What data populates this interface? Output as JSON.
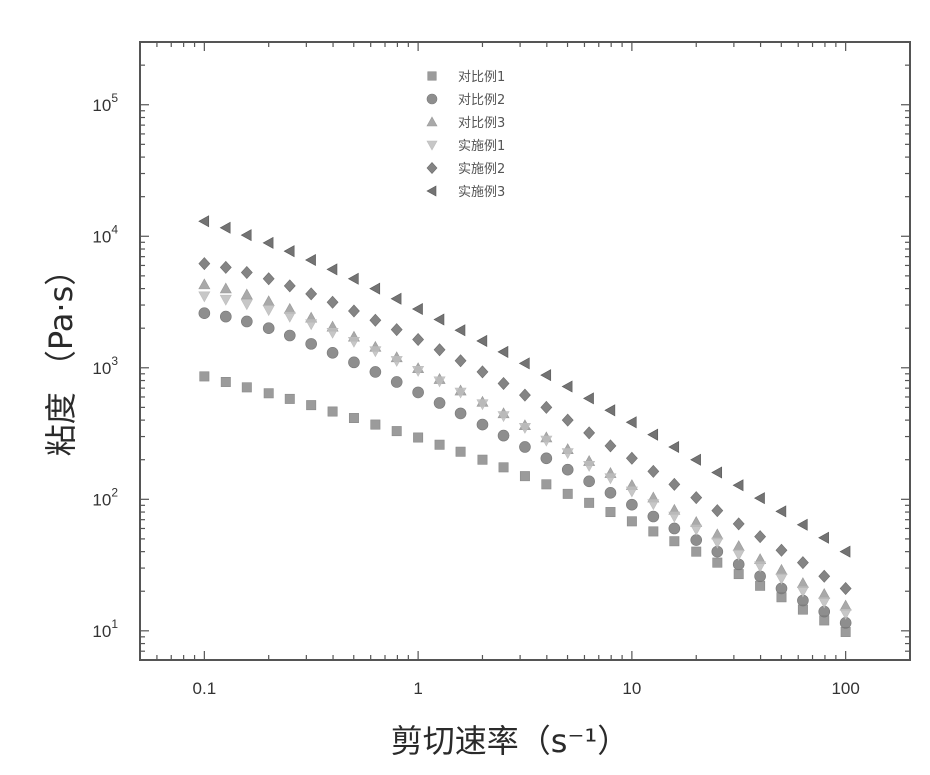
{
  "chart_data": {
    "type": "scatter",
    "xlabel": "剪切速率（s⁻¹）",
    "ylabel": "粘度 （Pa·s）",
    "x_scale": "log",
    "y_scale": "log",
    "xlim": [
      0.05,
      200
    ],
    "ylim": [
      6,
      300000
    ],
    "x_ticks": [
      {
        "value": 0.1,
        "label": "0.1"
      },
      {
        "value": 1,
        "label": "1"
      },
      {
        "value": 10,
        "label": "10"
      },
      {
        "value": 100,
        "label": "100"
      }
    ],
    "y_ticks": [
      {
        "value": 10,
        "base": "10",
        "exp": "1"
      },
      {
        "value": 100,
        "base": "10",
        "exp": "2"
      },
      {
        "value": 1000,
        "base": "10",
        "exp": "3"
      },
      {
        "value": 10000,
        "base": "10",
        "exp": "4"
      },
      {
        "value": 100000,
        "base": "10",
        "exp": "5"
      }
    ],
    "grid": false,
    "legend_position": "top-center",
    "x_points": [
      0.1,
      0.126,
      0.158,
      0.2,
      0.251,
      0.316,
      0.398,
      0.501,
      0.631,
      0.794,
      1,
      1.26,
      1.58,
      2,
      2.51,
      3.16,
      3.98,
      5.01,
      6.31,
      7.94,
      10,
      12.6,
      15.8,
      20,
      25.1,
      31.6,
      39.8,
      50.1,
      63.1,
      79.4,
      100
    ],
    "series": [
      {
        "name": "对比例1",
        "marker": "square",
        "color": "#8a8a8a",
        "values": [
          860,
          780,
          710,
          640,
          580,
          520,
          465,
          415,
          370,
          330,
          295,
          260,
          230,
          200,
          175,
          150,
          130,
          110,
          94,
          80,
          68,
          57,
          48,
          40,
          33,
          27,
          22,
          18,
          14.5,
          12,
          9.8
        ]
      },
      {
        "name": "对比例2",
        "marker": "circle",
        "color": "#7a7a7a",
        "values": [
          2600,
          2450,
          2250,
          2000,
          1760,
          1520,
          1300,
          1100,
          930,
          780,
          650,
          540,
          450,
          370,
          305,
          250,
          205,
          168,
          137,
          112,
          91,
          74,
          60,
          49,
          40,
          32,
          26,
          21,
          17,
          14,
          11.5
        ]
      },
      {
        "name": "对比例3",
        "marker": "triangle-up",
        "color": "#9a9a9a",
        "values": [
          4300,
          4000,
          3600,
          3200,
          2800,
          2400,
          2050,
          1720,
          1440,
          1200,
          990,
          820,
          670,
          550,
          450,
          365,
          295,
          240,
          195,
          158,
          128,
          103,
          83,
          67,
          54,
          44,
          35,
          29,
          23,
          19,
          15.5
        ]
      },
      {
        "name": "实施例1",
        "marker": "triangle-down",
        "color": "#bdbdbd",
        "values": [
          3500,
          3300,
          3050,
          2750,
          2450,
          2150,
          1850,
          1580,
          1340,
          1130,
          950,
          790,
          650,
          530,
          430,
          350,
          280,
          225,
          180,
          145,
          115,
          92,
          74,
          59,
          47,
          38,
          31,
          25,
          20,
          16.5,
          13.5
        ]
      },
      {
        "name": "实施例2",
        "marker": "diamond",
        "color": "#6e6e6e",
        "values": [
          6200,
          5800,
          5300,
          4750,
          4200,
          3650,
          3150,
          2700,
          2300,
          1950,
          1640,
          1370,
          1130,
          930,
          760,
          620,
          500,
          400,
          320,
          255,
          205,
          163,
          130,
          103,
          82,
          65,
          52,
          41,
          33,
          26,
          21
        ]
      },
      {
        "name": "实施例3",
        "marker": "triangle-left",
        "color": "#5a5a5a",
        "values": [
          13000,
          11600,
          10200,
          8900,
          7700,
          6600,
          5600,
          4750,
          4000,
          3350,
          2800,
          2330,
          1930,
          1600,
          1320,
          1080,
          880,
          720,
          585,
          475,
          385,
          310,
          250,
          200,
          160,
          128,
          102,
          81,
          64,
          51,
          40
        ]
      }
    ]
  }
}
